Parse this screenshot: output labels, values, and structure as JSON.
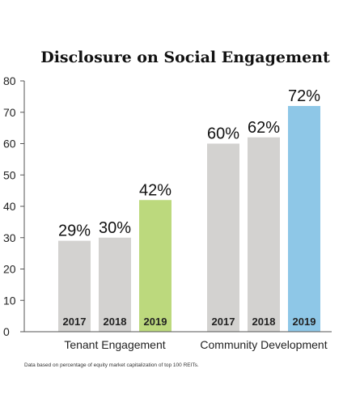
{
  "chart_data": {
    "type": "bar",
    "title": "Disclosure on Social Engagement",
    "ylim": [
      0,
      80
    ],
    "yticks": [
      0,
      10,
      20,
      30,
      40,
      50,
      60,
      70,
      80
    ],
    "grid": false,
    "groups": [
      {
        "name": "Tenant Engagement",
        "bars": [
          {
            "year": "2017",
            "value": 29,
            "label": "29%",
            "color": "#d3d2d0"
          },
          {
            "year": "2018",
            "value": 30,
            "label": "30%",
            "color": "#d3d2d0"
          },
          {
            "year": "2019",
            "value": 42,
            "label": "42%",
            "color": "#bcd97d"
          }
        ]
      },
      {
        "name": "Community Development",
        "bars": [
          {
            "year": "2017",
            "value": 60,
            "label": "60%",
            "color": "#d3d2d0"
          },
          {
            "year": "2018",
            "value": 62,
            "label": "62%",
            "color": "#d3d2d0"
          },
          {
            "year": "2019",
            "value": 72,
            "label": "72%",
            "color": "#8ec7e7"
          }
        ]
      }
    ],
    "note": "Data based on percentage of equity market capitalization of top 100 REITs."
  }
}
